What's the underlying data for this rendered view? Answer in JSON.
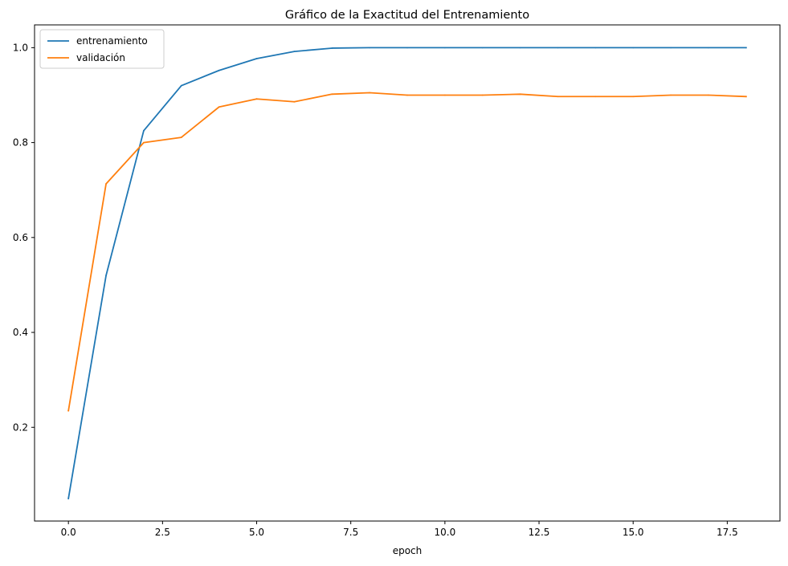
{
  "chart_data": {
    "type": "line",
    "title": "Gráfico de la Exactitud del Entrenamiento",
    "xlabel": "epoch",
    "ylabel": "",
    "xlim": [
      -0.9,
      18.9
    ],
    "ylim": [
      0.0025,
      1.048
    ],
    "xticks": [
      {
        "value": 0,
        "label": "0.0"
      },
      {
        "value": 2.5,
        "label": "2.5"
      },
      {
        "value": 5,
        "label": "5.0"
      },
      {
        "value": 7.5,
        "label": "7.5"
      },
      {
        "value": 10,
        "label": "10.0"
      },
      {
        "value": 12.5,
        "label": "12.5"
      },
      {
        "value": 15,
        "label": "15.0"
      },
      {
        "value": 17.5,
        "label": "17.5"
      }
    ],
    "yticks": [
      {
        "value": 0.2,
        "label": "0.2"
      },
      {
        "value": 0.4,
        "label": "0.4"
      },
      {
        "value": 0.6,
        "label": "0.6"
      },
      {
        "value": 0.8,
        "label": "0.8"
      },
      {
        "value": 1.0,
        "label": "1.0"
      }
    ],
    "grid": false,
    "legend_position": "top-left",
    "x": [
      0,
      1,
      2,
      3,
      4,
      5,
      6,
      7,
      8,
      9,
      10,
      11,
      12,
      13,
      14,
      15,
      16,
      17,
      18
    ],
    "series": [
      {
        "name": "entrenamiento",
        "color": "#1f77b4",
        "values": [
          0.05,
          0.52,
          0.825,
          0.92,
          0.952,
          0.977,
          0.992,
          0.999,
          1.0,
          1.0,
          1.0,
          1.0,
          1.0,
          1.0,
          1.0,
          1.0,
          1.0,
          1.0,
          1.0
        ]
      },
      {
        "name": "validación",
        "color": "#ff7f0e",
        "values": [
          0.235,
          0.713,
          0.8,
          0.811,
          0.875,
          0.892,
          0.886,
          0.902,
          0.905,
          0.9,
          0.9,
          0.9,
          0.902,
          0.897,
          0.897,
          0.897,
          0.9,
          0.9,
          0.897
        ]
      }
    ]
  }
}
